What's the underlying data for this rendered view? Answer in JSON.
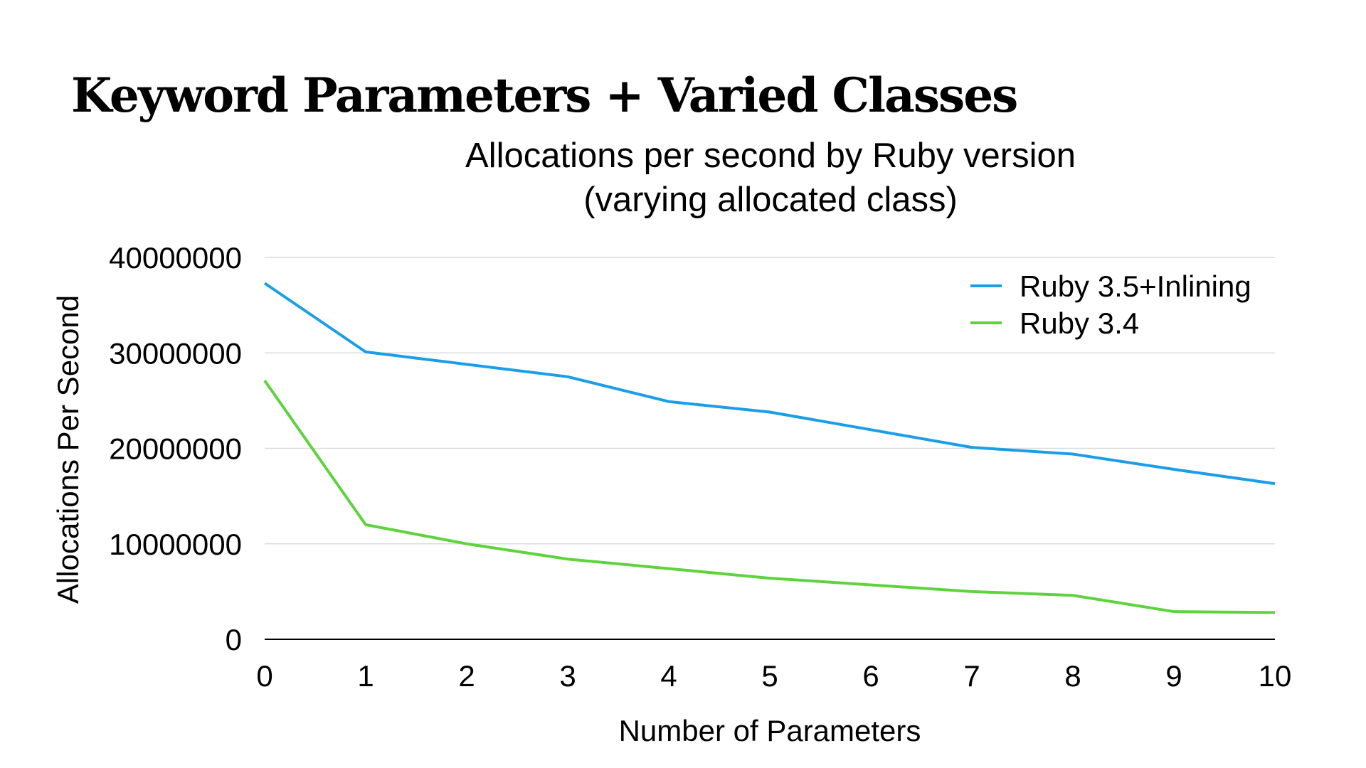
{
  "slide_title": "Keyword Parameters + Varied Classes",
  "chart_data": {
    "type": "line",
    "title": [
      "Allocations per second by Ruby version",
      "(varying allocated class)"
    ],
    "xlabel": "Number of Parameters",
    "ylabel": "Allocations Per Second",
    "x": [
      0,
      1,
      2,
      3,
      4,
      5,
      6,
      7,
      8,
      9,
      10
    ],
    "xlim": [
      0,
      10
    ],
    "ylim": [
      0,
      40000000
    ],
    "yticks": [
      0,
      10000000,
      20000000,
      30000000,
      40000000
    ],
    "ytick_labels": [
      "0",
      "10000000",
      "20000000",
      "30000000",
      "40000000"
    ],
    "xtick_labels": [
      "0",
      "1",
      "2",
      "3",
      "4",
      "5",
      "6",
      "7",
      "8",
      "9",
      "10"
    ],
    "grid": true,
    "legend_position": "top-right",
    "series": [
      {
        "name": "Ruby 3.5+Inlining",
        "color": "#1a9ee8",
        "values": [
          37300000,
          30100000,
          28800000,
          27500000,
          24900000,
          23800000,
          21950000,
          20100000,
          19400000,
          17800000,
          16300000
        ]
      },
      {
        "name": "Ruby 3.4",
        "color": "#5fd33e",
        "values": [
          27100000,
          12000000,
          10000000,
          8400000,
          7400000,
          6400000,
          5700000,
          5000000,
          4600000,
          2900000,
          2800000
        ]
      }
    ]
  }
}
